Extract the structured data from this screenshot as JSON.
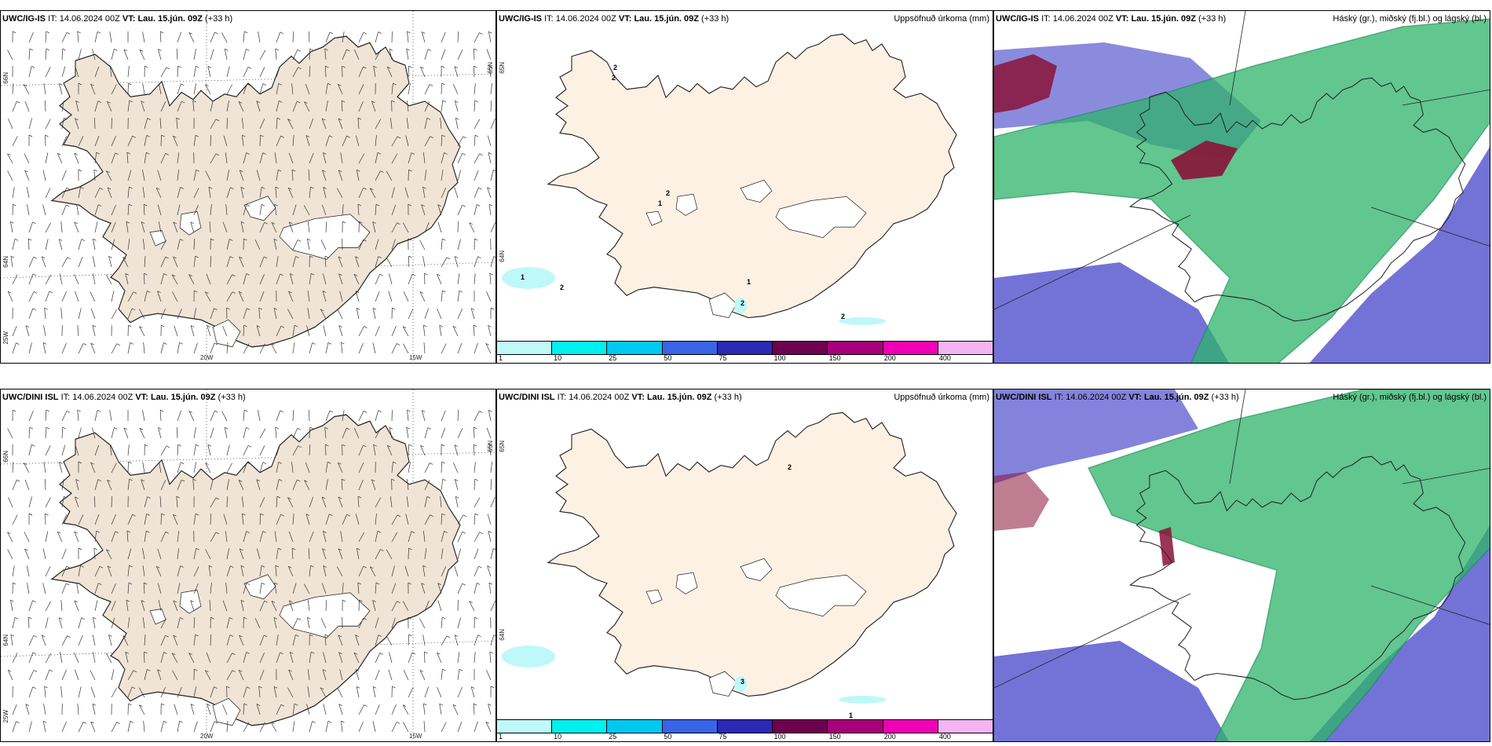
{
  "panels": [
    {
      "model": "UWC/IG-IS",
      "it_label": "IT:",
      "it_value": "14.06.2024 00Z",
      "vt_label": "VT:",
      "vt_value": "Lau. 15.jún. 09Z",
      "lead": "(+33 h)",
      "right_title": "",
      "kind": "wind",
      "grid": {
        "lon20": "20W",
        "lon15": "15W",
        "lat66": "66N",
        "lat64": "64N",
        "lat65r": "65N",
        "lat25": "25W"
      }
    },
    {
      "model": "UWC/IG-IS",
      "it_label": "IT:",
      "it_value": "14.06.2024 00Z",
      "vt_label": "VT:",
      "vt_value": "Lau. 15.jún. 09Z",
      "lead": "(+33 h)",
      "right_title": "Uppsöfnuð úrkoma (mm)",
      "kind": "precip",
      "labels": [
        "1",
        "2",
        "2",
        "2",
        "2",
        "1",
        "2",
        "1",
        "2"
      ],
      "grid": {
        "lat65": "65N",
        "lat64": "64N"
      }
    },
    {
      "model": "UWC/IG-IS",
      "it_label": "IT:",
      "it_value": "14.06.2024 00Z",
      "vt_label": "VT:",
      "vt_value": "Lau. 15.jún. 09Z",
      "lead": "(+33 h)",
      "right_title": "Háský (gr.), miðský (fj.bl.) og lágský (bl.)",
      "kind": "cloud"
    },
    {
      "model": "UWC/DINI ISL",
      "it_label": "IT:",
      "it_value": "14.06.2024 00Z",
      "vt_label": "VT:",
      "vt_value": "Lau. 15.jún. 09Z",
      "lead": "(+33 h)",
      "right_title": "",
      "kind": "wind",
      "grid": {
        "lon20": "20W",
        "lon15": "15W",
        "lat66": "66N",
        "lat64": "64N",
        "lat65r": "65N",
        "lat25": "25W"
      }
    },
    {
      "model": "UWC/DINI ISL",
      "it_label": "IT:",
      "it_value": "14.06.2024 00Z",
      "vt_label": "VT:",
      "vt_value": "Lau. 15.jún. 09Z",
      "lead": "(+33 h)",
      "right_title": "Uppsöfnuð úrkoma (mm)",
      "kind": "precip",
      "labels": [
        "2",
        "1",
        "3"
      ],
      "grid": {
        "lat65": "65N",
        "lat64": "64N"
      }
    },
    {
      "model": "UWC/DINI ISL",
      "it_label": "IT:",
      "it_value": "14.06.2024 00Z",
      "vt_label": "VT:",
      "vt_value": "Lau. 15.jún. 09Z",
      "lead": "(+33 h)",
      "right_title": "Háský (gr.), miðský (fj.bl.) og lágský (bl.)",
      "kind": "cloud"
    }
  ],
  "colorbar": {
    "labels": [
      "1",
      "10",
      "25",
      "50",
      "75",
      "100",
      "150",
      "200",
      "400"
    ],
    "colors": [
      "#bff8f8",
      "#00f0f0",
      "#00c8ee",
      "#3a64e6",
      "#2a2ab4",
      "#6e0050",
      "#a6007a",
      "#f000b4",
      "#f4b4f4"
    ]
  },
  "colors": {
    "land": "#f0e4d6",
    "land_precip": "#fdf1e4",
    "coast": "#222222",
    "high_cloud": "#2db36a",
    "mid_cloud": "#5a5ad0",
    "low_cloud": "#8a1238"
  }
}
